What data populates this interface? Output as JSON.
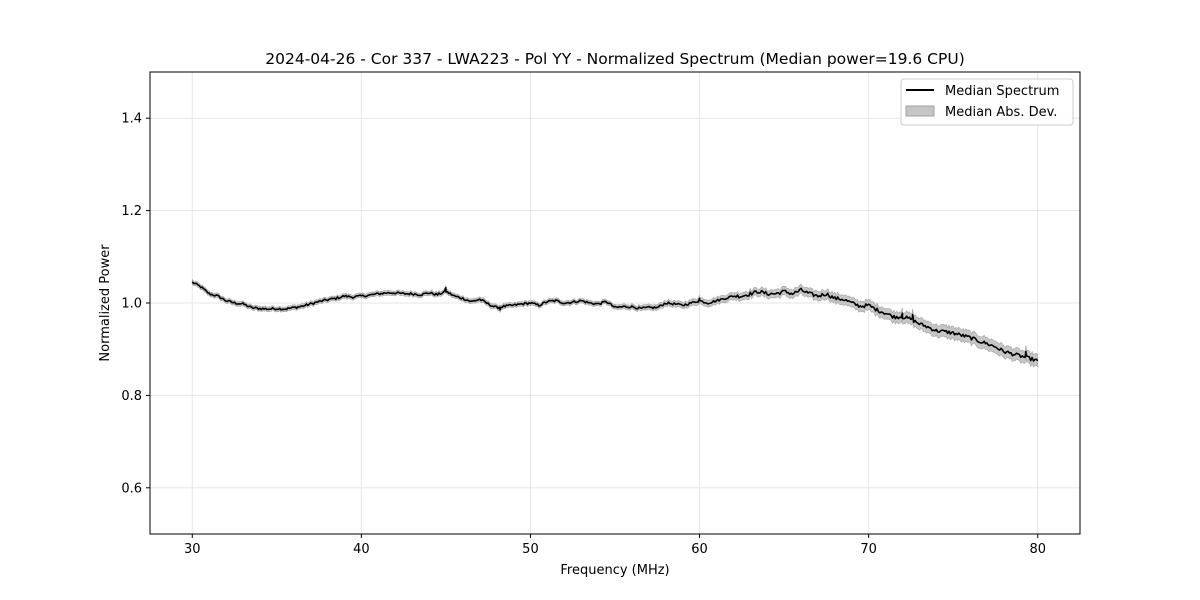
{
  "chart_data": {
    "type": "line",
    "title": "2024-04-26 - Cor 337 - LWA223 - Pol YY - Normalized Spectrum (Median power=19.6 CPU)",
    "xlabel": "Frequency (MHz)",
    "ylabel": "Normalized Power",
    "xlim": [
      27.5,
      82.5
    ],
    "ylim": [
      0.5,
      1.5
    ],
    "xticks": [
      30,
      40,
      50,
      60,
      70,
      80
    ],
    "xtick_labels": [
      "30",
      "40",
      "50",
      "60",
      "70",
      "80"
    ],
    "yticks": [
      0.6,
      0.8,
      1.0,
      1.2,
      1.4
    ],
    "ytick_labels": [
      "0.6",
      "0.8",
      "1.0",
      "1.2",
      "1.4"
    ],
    "grid": true,
    "legend_position": "top-right",
    "legend": [
      "Median Spectrum",
      "Median Abs. Dev."
    ],
    "series": [
      {
        "name": "Median Spectrum",
        "color": "#000000",
        "x": [
          30.0,
          30.5,
          31.0,
          31.5,
          32.0,
          32.5,
          33.0,
          33.5,
          34.0,
          34.5,
          35.0,
          35.5,
          36.0,
          36.5,
          37.0,
          37.5,
          38.0,
          38.5,
          39.0,
          39.5,
          40.0,
          40.5,
          41.0,
          41.5,
          42.0,
          42.5,
          43.0,
          43.5,
          44.0,
          44.5,
          45.0,
          45.5,
          46.0,
          46.5,
          47.0,
          47.5,
          48.0,
          48.5,
          49.0,
          49.5,
          50.0,
          50.5,
          51.0,
          51.5,
          52.0,
          52.5,
          53.0,
          53.5,
          54.0,
          54.5,
          55.0,
          55.5,
          56.0,
          56.5,
          57.0,
          57.5,
          58.0,
          58.5,
          59.0,
          59.5,
          60.0,
          60.5,
          61.0,
          61.5,
          62.0,
          62.5,
          63.0,
          63.5,
          64.0,
          64.5,
          65.0,
          65.5,
          66.0,
          66.5,
          67.0,
          67.5,
          68.0,
          68.5,
          69.0,
          69.5,
          70.0,
          70.5,
          71.0,
          71.5,
          72.0,
          72.5,
          73.0,
          73.5,
          74.0,
          74.5,
          75.0,
          75.5,
          76.0,
          76.5,
          77.0,
          77.5,
          78.0,
          78.5,
          79.0,
          79.5,
          80.0
        ],
        "values": [
          1.045,
          1.035,
          1.02,
          1.015,
          1.005,
          1.0,
          0.998,
          0.99,
          0.988,
          0.987,
          0.988,
          0.987,
          0.99,
          0.993,
          0.998,
          1.003,
          1.007,
          1.01,
          1.015,
          1.013,
          1.015,
          1.017,
          1.02,
          1.022,
          1.022,
          1.02,
          1.02,
          1.018,
          1.022,
          1.018,
          1.025,
          1.015,
          1.01,
          1.003,
          1.008,
          0.998,
          0.99,
          0.993,
          0.995,
          0.998,
          1.0,
          0.995,
          1.003,
          1.005,
          1.0,
          1.002,
          1.005,
          1.0,
          0.998,
          1.003,
          0.99,
          0.992,
          0.992,
          0.988,
          0.99,
          0.99,
          1.0,
          0.998,
          0.995,
          1.0,
          1.005,
          1.0,
          1.005,
          1.01,
          1.015,
          1.015,
          1.02,
          1.025,
          1.02,
          1.02,
          1.025,
          1.02,
          1.028,
          1.02,
          1.015,
          1.02,
          1.01,
          1.008,
          1.0,
          0.993,
          0.995,
          0.985,
          0.978,
          0.97,
          0.97,
          0.965,
          0.955,
          0.948,
          0.94,
          0.938,
          0.935,
          0.93,
          0.925,
          0.918,
          0.912,
          0.905,
          0.895,
          0.89,
          0.885,
          0.88,
          0.875
        ],
        "spikes": [
          [
            45.0,
            1.033
          ],
          [
            48.2,
            0.985
          ],
          [
            60.0,
            1.01
          ],
          [
            72.0,
            0.978
          ],
          [
            72.6,
            0.975
          ],
          [
            79.3,
            0.895
          ]
        ]
      }
    ],
    "band": {
      "name": "Median Abs. Dev.",
      "color": "#c6c6c6",
      "edge_color": "#a0a0a0",
      "half_width_low": 0.005,
      "half_width_high": 0.013
    }
  }
}
